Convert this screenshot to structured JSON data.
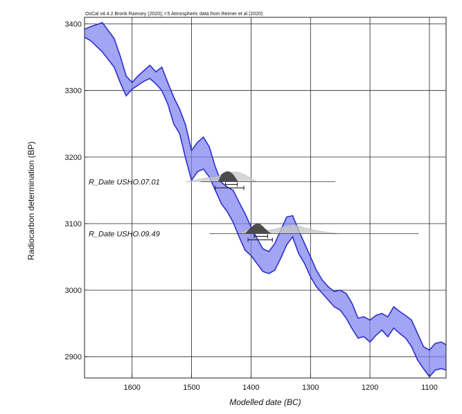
{
  "chart_data": {
    "type": "line",
    "credit": "OxCal v4.4.2 Bronk Ramsey (2020); r:5 Atmospheric data from Reimer et al (2020)",
    "xlabel": "Modelled date (BC)",
    "ylabel": "Radiocarbon determination (BP)",
    "x_ticks": [
      1600,
      1500,
      1400,
      1300,
      1200,
      1100
    ],
    "y_ticks": [
      3400,
      3300,
      3200,
      3100,
      3000,
      2900
    ],
    "xlim": [
      1680,
      1072
    ],
    "ylim": [
      2868,
      3410
    ],
    "x_reversed": true,
    "grid": true,
    "colors": {
      "band_fill": "#7b7ef0",
      "band_edge": "#2a2fc9",
      "likelihood": "#c8c8c8",
      "posterior": "#3c3c3c"
    },
    "calibration_curve": {
      "x": [
        1680,
        1670,
        1650,
        1630,
        1620,
        1610,
        1600,
        1590,
        1580,
        1570,
        1560,
        1550,
        1540,
        1530,
        1520,
        1510,
        1500,
        1490,
        1480,
        1470,
        1460,
        1450,
        1440,
        1430,
        1420,
        1410,
        1400,
        1390,
        1380,
        1370,
        1360,
        1350,
        1340,
        1330,
        1320,
        1310,
        1300,
        1290,
        1280,
        1270,
        1260,
        1250,
        1240,
        1230,
        1220,
        1210,
        1200,
        1190,
        1180,
        1170,
        1160,
        1150,
        1140,
        1130,
        1120,
        1110,
        1100,
        1090,
        1080,
        1072
      ],
      "upper": [
        3392,
        3396,
        3402,
        3378,
        3352,
        3322,
        3312,
        3322,
        3330,
        3338,
        3328,
        3335,
        3312,
        3290,
        3272,
        3248,
        3210,
        3222,
        3230,
        3215,
        3185,
        3162,
        3155,
        3150,
        3132,
        3115,
        3095,
        3078,
        3062,
        3058,
        3070,
        3090,
        3110,
        3112,
        3090,
        3070,
        3050,
        3030,
        3015,
        3005,
        2998,
        3000,
        2995,
        2980,
        2958,
        2960,
        2955,
        2962,
        2965,
        2960,
        2975,
        2968,
        2962,
        2955,
        2935,
        2915,
        2910,
        2920,
        2922,
        2918
      ],
      "lower": [
        3380,
        3375,
        3358,
        3335,
        3312,
        3292,
        3302,
        3308,
        3314,
        3318,
        3310,
        3300,
        3280,
        3250,
        3235,
        3198,
        3165,
        3178,
        3182,
        3170,
        3150,
        3130,
        3118,
        3102,
        3080,
        3060,
        3052,
        3040,
        3028,
        3025,
        3030,
        3048,
        3068,
        3080,
        3055,
        3040,
        3020,
        3005,
        2995,
        2985,
        2975,
        2970,
        2958,
        2942,
        2928,
        2930,
        2922,
        2932,
        2940,
        2930,
        2943,
        2935,
        2928,
        2915,
        2895,
        2882,
        2870,
        2880,
        2882,
        2880
      ]
    },
    "samples": [
      {
        "name": "R_Date USHO.07.01",
        "bp": 3163,
        "measurement_line": [
          1485,
          1258
        ],
        "likelihood": {
          "x": [
            1510,
            1490,
            1470,
            1460,
            1450,
            1440,
            1430,
            1420,
            1410,
            1400,
            1390
          ],
          "y": [
            0.0,
            0.2,
            0.45,
            0.5,
            0.7,
            0.9,
            1.0,
            0.95,
            0.7,
            0.35,
            0.0
          ]
        },
        "posterior": {
          "x": [
            1455,
            1450,
            1445,
            1440,
            1435,
            1430,
            1425,
            1422
          ],
          "y": [
            0.0,
            0.7,
            0.9,
            1.0,
            0.95,
            0.7,
            0.3,
            0.0
          ]
        },
        "range_68": [
          1443,
          1423
        ],
        "range_95": [
          1460,
          1412
        ]
      },
      {
        "name": "R_Date USHO.09.49",
        "bp": 3085,
        "measurement_line": [
          1470,
          1118
        ],
        "likelihood": {
          "x": [
            1420,
            1410,
            1400,
            1390,
            1380,
            1370,
            1360,
            1350,
            1340,
            1330,
            1320,
            1310,
            1300,
            1290,
            1280,
            1270,
            1260,
            1250
          ],
          "y": [
            0.0,
            0.3,
            0.6,
            0.75,
            0.55,
            0.35,
            0.45,
            0.65,
            0.8,
            0.9,
            0.8,
            0.6,
            0.45,
            0.3,
            0.2,
            0.12,
            0.06,
            0.0
          ]
        },
        "posterior": {
          "x": [
            1410,
            1402,
            1395,
            1390,
            1385,
            1380,
            1375,
            1370,
            1365
          ],
          "y": [
            0.0,
            0.5,
            0.85,
            1.0,
            0.95,
            0.7,
            0.4,
            0.15,
            0.0
          ]
        },
        "range_68": [
          1395,
          1372
        ],
        "range_95": [
          1405,
          1364
        ]
      }
    ]
  }
}
